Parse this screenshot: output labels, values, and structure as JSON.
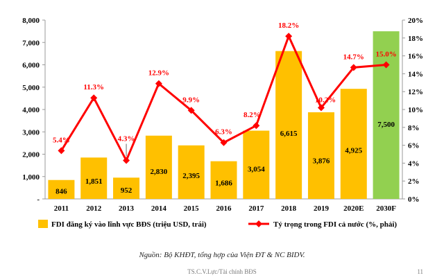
{
  "chart_data": {
    "type": "bar",
    "categories": [
      "2011",
      "2012",
      "2013",
      "2014",
      "2015",
      "2016",
      "2017",
      "2018",
      "2019",
      "2020E",
      "2030F"
    ],
    "series": [
      {
        "name": "FDI đăng ký vào lĩnh vực BĐS (triệu USD, trái)",
        "kind": "bar",
        "axis": "left",
        "color": "#ffc000",
        "highlight_color": "#92d050",
        "highlight_index": 10,
        "values": [
          846,
          1851,
          952,
          2830,
          2395,
          1686,
          3054,
          6615,
          3876,
          4925,
          7500
        ],
        "labels": [
          "846",
          "1,851",
          "952",
          "2,830",
          "2,395",
          "1,686",
          "3,054",
          "6,615",
          "3,876",
          "4,925",
          "7,500"
        ]
      },
      {
        "name": "Tỷ trọng  trong FDI cả nước (%, phải)",
        "kind": "line",
        "axis": "right",
        "color": "#ff0000",
        "values": [
          5.4,
          11.3,
          4.3,
          12.9,
          9.9,
          6.3,
          8.2,
          18.2,
          10.2,
          14.7,
          15.0
        ],
        "labels": [
          "5.4%",
          "11.3%",
          "4.3%",
          "12.9%",
          "9.9%",
          "6.3%",
          "8.2%",
          "18.2%",
          "10.2%",
          "14.7%",
          "15.0%"
        ]
      }
    ],
    "y_left": {
      "range": [
        0,
        8000
      ],
      "tick_labels": [
        "-",
        "1,000",
        "2,000",
        "3,000",
        "4,000",
        "5,000",
        "6,000",
        "7,000",
        "8,000"
      ]
    },
    "y_right": {
      "range": [
        0,
        20
      ],
      "tick_labels": [
        "0%",
        "2%",
        "4%",
        "6%",
        "8%",
        "10%",
        "12%",
        "14%",
        "16%",
        "18%",
        "20%"
      ]
    },
    "legend_position": "bottom",
    "grid": false
  },
  "source_note": "Nguồn: Bộ KHĐT, tổng hợp của Viện ĐT & NC BIDV.",
  "footer": "TS.C.V.Lực/Tài chính BĐS",
  "page_number": "11"
}
